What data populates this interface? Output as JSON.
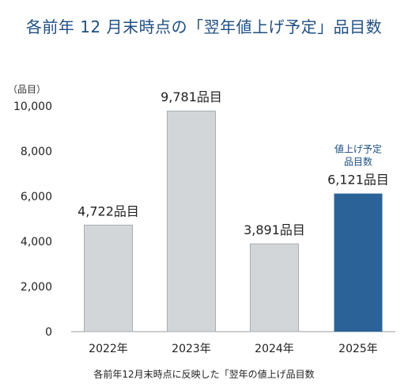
{
  "title": "各前年 12 月末時点の「翌年値上げ予定」品目数",
  "unit_label": "（品目）",
  "caption": "各前年12月末時点に反映した「翌年の値上げ品目数",
  "highlight_note": [
    "値上げ予定",
    "品目数"
  ],
  "colors": {
    "bar": "#d3d6d9",
    "highlight": "#2b6399",
    "title": "#1f4f82"
  },
  "chart_data": {
    "type": "bar",
    "title": "各前年 12 月末時点の「翌年値上げ予定」品目数",
    "categories": [
      "2022年",
      "2023年",
      "2024年",
      "2025年"
    ],
    "values": [
      4722,
      9781,
      3891,
      6121
    ],
    "data_labels": [
      "4,722品目",
      "9,781品目",
      "3,891品目",
      "6,121品目"
    ],
    "highlight_index": 3,
    "ylim": [
      0,
      10000
    ],
    "yticks": [
      0,
      2000,
      4000,
      6000,
      8000,
      10000
    ],
    "ytick_labels": [
      "0",
      "2,000",
      "4,000",
      "6,000",
      "8,000",
      "10,000"
    ],
    "ylabel": "（品目）",
    "xlabel": "",
    "grid": false,
    "legend": "none"
  }
}
